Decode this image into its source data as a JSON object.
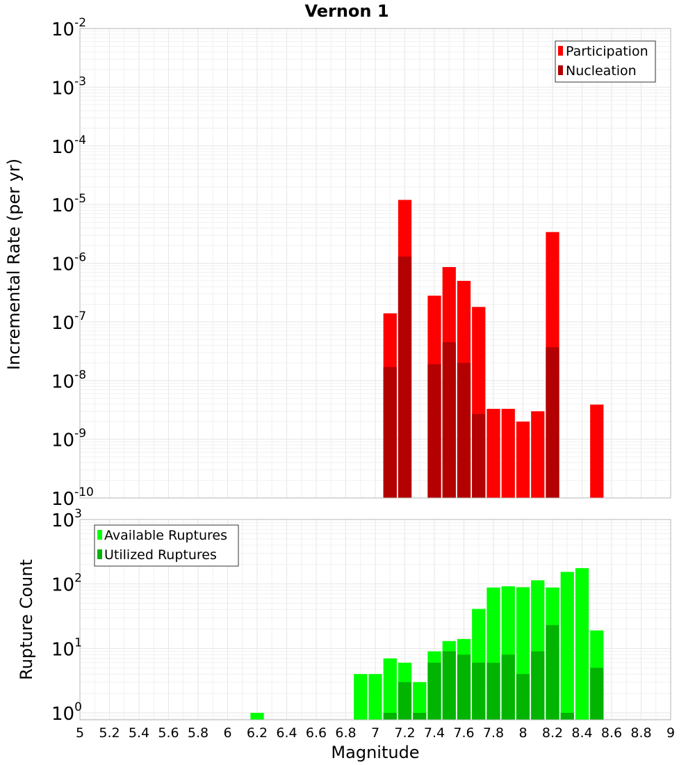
{
  "title": "Vernon 1",
  "x_axis": {
    "label": "Magnitude",
    "min": 5,
    "max": 9,
    "ticks": [
      "5",
      "5.2",
      "5.4",
      "5.6",
      "5.8",
      "6",
      "6.2",
      "6.4",
      "6.6",
      "6.8",
      "7",
      "7.2",
      "7.4",
      "7.6",
      "7.8",
      "8",
      "8.2",
      "8.4",
      "8.6",
      "8.8",
      "9"
    ]
  },
  "colors": {
    "participation": "#ff0000",
    "nucleation": "#b30000",
    "available": "#00ff00",
    "utilized": "#00b400"
  },
  "chart_data": [
    {
      "type": "bar",
      "ylabel": "Incremental Rate (per yr)",
      "yscale": "log",
      "ylim": [
        1e-10,
        0.01
      ],
      "y_tick_exponents": [
        -10,
        -9,
        -8,
        -7,
        -6,
        -5,
        -4,
        -3,
        -2
      ],
      "legend_position": "top-right",
      "bin_width": 0.1,
      "x": [
        7.1,
        7.2,
        7.4,
        7.5,
        7.6,
        7.7,
        7.8,
        7.9,
        8.0,
        8.1,
        8.2,
        8.5
      ],
      "series": [
        {
          "name": "Participation",
          "values": [
            1.4e-07,
            1.2e-05,
            2.8e-07,
            8.6e-07,
            5e-07,
            1.8e-07,
            3.3e-09,
            3.3e-09,
            2e-09,
            3e-09,
            3.4e-06,
            3.9e-09
          ]
        },
        {
          "name": "Nucleation",
          "values": [
            1.7e-08,
            1.3e-06,
            1.9e-08,
            4.5e-08,
            2e-08,
            2.7e-09,
            0,
            0,
            0,
            0,
            3.7e-08,
            0
          ]
        }
      ]
    },
    {
      "type": "bar",
      "ylabel": "Rupture Count",
      "yscale": "log",
      "ylim": [
        0.78,
        1000
      ],
      "y_tick_exponents": [
        0,
        1,
        2,
        3
      ],
      "legend_position": "top-left",
      "bin_width": 0.1,
      "x": [
        6.2,
        6.9,
        7.0,
        7.1,
        7.2,
        7.3,
        7.4,
        7.5,
        7.6,
        7.7,
        7.8,
        7.9,
        8.0,
        8.1,
        8.2,
        8.3,
        8.4,
        8.5
      ],
      "series": [
        {
          "name": "Available Ruptures",
          "values": [
            1,
            4,
            4,
            7,
            6,
            3,
            9,
            13,
            14,
            41,
            88,
            92,
            89,
            114,
            88,
            154,
            176,
            19
          ]
        },
        {
          "name": "Utilized Ruptures",
          "values": [
            0,
            0,
            0,
            1,
            3,
            1,
            6,
            9,
            8,
            6,
            6,
            8,
            4,
            9,
            23,
            1,
            0,
            5
          ]
        }
      ]
    }
  ]
}
